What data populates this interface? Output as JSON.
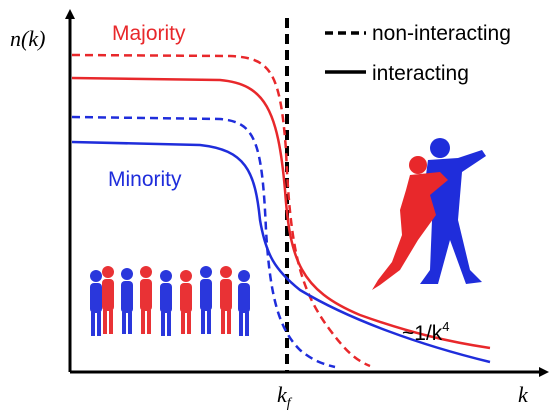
{
  "axes": {
    "y_label": "n(k)",
    "x_label": "k",
    "x_marker": {
      "main": "k",
      "sub": "f"
    }
  },
  "curves": {
    "majority": "Majority",
    "minority": "Minority"
  },
  "legend": {
    "dashed": "non-interacting",
    "solid": "interacting"
  },
  "tail_label": {
    "main": "~1/k",
    "sup": "4"
  }
}
